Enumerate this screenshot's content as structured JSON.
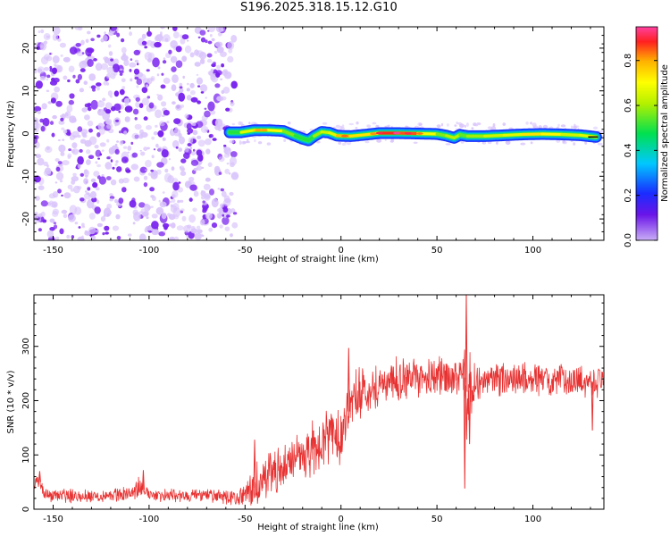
{
  "title": "S196.2025.318.15.12.G10",
  "colors": {
    "snr_line": "#e83232",
    "noise_purple": "#7a24ee",
    "noise_light": "#d9c4fb",
    "colormap": [
      "#c9aef6",
      "#6a14e8",
      "#1a2cff",
      "#00c8ff",
      "#00e050",
      "#b4f000",
      "#ffff00",
      "#ffb000",
      "#ff2020",
      "#ff40a0"
    ]
  },
  "chart_data": [
    {
      "type": "heatmap",
      "title": "S196.2025.318.15.12.G10",
      "xlabel": "Height of straight line (km)",
      "ylabel": "Frequency (Hz)",
      "xlim": [
        -160,
        137
      ],
      "ylim": [
        -25,
        25
      ],
      "xticks": [
        -150,
        -100,
        -50,
        0,
        50,
        100
      ],
      "xtick_labels": [
        "-150",
        "-100",
        "-50",
        "0",
        "50",
        "100"
      ],
      "yticks": [
        -20,
        -10,
        0,
        10,
        20
      ],
      "ytick_labels": [
        "-20",
        "-10",
        "0",
        "10",
        "20"
      ],
      "noise_region_x": [
        -160,
        -57
      ],
      "ridge": {
        "x": [
          -58,
          -52,
          -45,
          -38,
          -30,
          -24,
          -20,
          -17,
          -14,
          -10,
          -6,
          -2,
          5,
          12,
          20,
          30,
          40,
          50,
          55,
          59,
          62,
          66,
          75,
          85,
          95,
          105,
          115,
          125,
          133
        ],
        "freq": [
          0.3,
          0.3,
          0.8,
          0.8,
          0.6,
          -0.5,
          -1.2,
          -1.6,
          -0.6,
          0.4,
          0.2,
          -0.5,
          -0.6,
          -0.3,
          0.1,
          0.1,
          0.0,
          -0.1,
          -0.5,
          -1.0,
          -0.3,
          -0.6,
          -0.6,
          -0.4,
          -0.2,
          -0.1,
          -0.2,
          -0.4,
          -0.8
        ],
        "amplitude": [
          0.45,
          0.6,
          0.8,
          0.8,
          0.7,
          0.5,
          0.55,
          0.5,
          0.55,
          0.7,
          0.65,
          0.75,
          0.9,
          0.65,
          0.9,
          0.95,
          0.85,
          0.6,
          0.6,
          0.7,
          0.6,
          0.55,
          0.7,
          0.65,
          0.75,
          0.8,
          0.7,
          0.65,
          0.75
        ]
      },
      "colorbar": {
        "label": "Normalized spectral amplitude",
        "range": [
          0.0,
          0.95
        ],
        "ticks": [
          0.0,
          0.2,
          0.4,
          0.6,
          0.8
        ],
        "tick_labels": [
          "0.0",
          "0.2",
          "0.4",
          "0.6",
          "0.8"
        ]
      }
    },
    {
      "type": "line",
      "title": "",
      "xlabel": "Height of straight line (km)",
      "ylabel": "SNR (10 * v/v)",
      "xlim": [
        -160,
        137
      ],
      "ylim": [
        0,
        395
      ],
      "xticks": [
        -150,
        -100,
        -50,
        0,
        50,
        100
      ],
      "xtick_labels": [
        "-150",
        "-100",
        "-50",
        "0",
        "50",
        "100"
      ],
      "yticks": [
        0,
        100,
        200,
        300
      ],
      "ytick_labels": [
        "0",
        "100",
        "200",
        "300"
      ],
      "series": [
        {
          "name": "SNR",
          "envelope_x": [
            -160,
            -158,
            -155,
            -150,
            -140,
            -130,
            -120,
            -110,
            -105,
            -100,
            -90,
            -80,
            -70,
            -60,
            -55,
            -50,
            -45,
            -40,
            -30,
            -20,
            -10,
            -5,
            0,
            5,
            10,
            20,
            30,
            40,
            50,
            55,
            60,
            64,
            65,
            66,
            67,
            70,
            80,
            90,
            100,
            110,
            120,
            130,
            137
          ],
          "envelope_y": [
            40,
            60,
            30,
            25,
            25,
            25,
            25,
            30,
            40,
            28,
            25,
            25,
            25,
            22,
            20,
            25,
            40,
            55,
            80,
            100,
            120,
            145,
            140,
            190,
            215,
            230,
            240,
            240,
            245,
            245,
            240,
            240,
            245,
            150,
            230,
            230,
            240,
            240,
            240,
            235,
            240,
            235,
            240
          ],
          "noise_amp": [
            15,
            20,
            12,
            12,
            12,
            12,
            12,
            12,
            20,
            12,
            12,
            12,
            12,
            12,
            14,
            20,
            40,
            45,
            40,
            45,
            50,
            55,
            55,
            50,
            45,
            40,
            38,
            35,
            35,
            35,
            35,
            40,
            80,
            100,
            60,
            35,
            32,
            32,
            30,
            28,
            28,
            28,
            28
          ],
          "spikes": [
            {
              "x": -157,
              "y": 70
            },
            {
              "x": -103,
              "y": 72
            },
            {
              "x": -45,
              "y": 128
            },
            {
              "x": 4,
              "y": 297
            },
            {
              "x": 64.5,
              "y": 38
            },
            {
              "x": 65.3,
              "y": 395
            },
            {
              "x": 67,
              "y": 120
            },
            {
              "x": 131,
              "y": 145
            }
          ]
        }
      ]
    }
  ]
}
